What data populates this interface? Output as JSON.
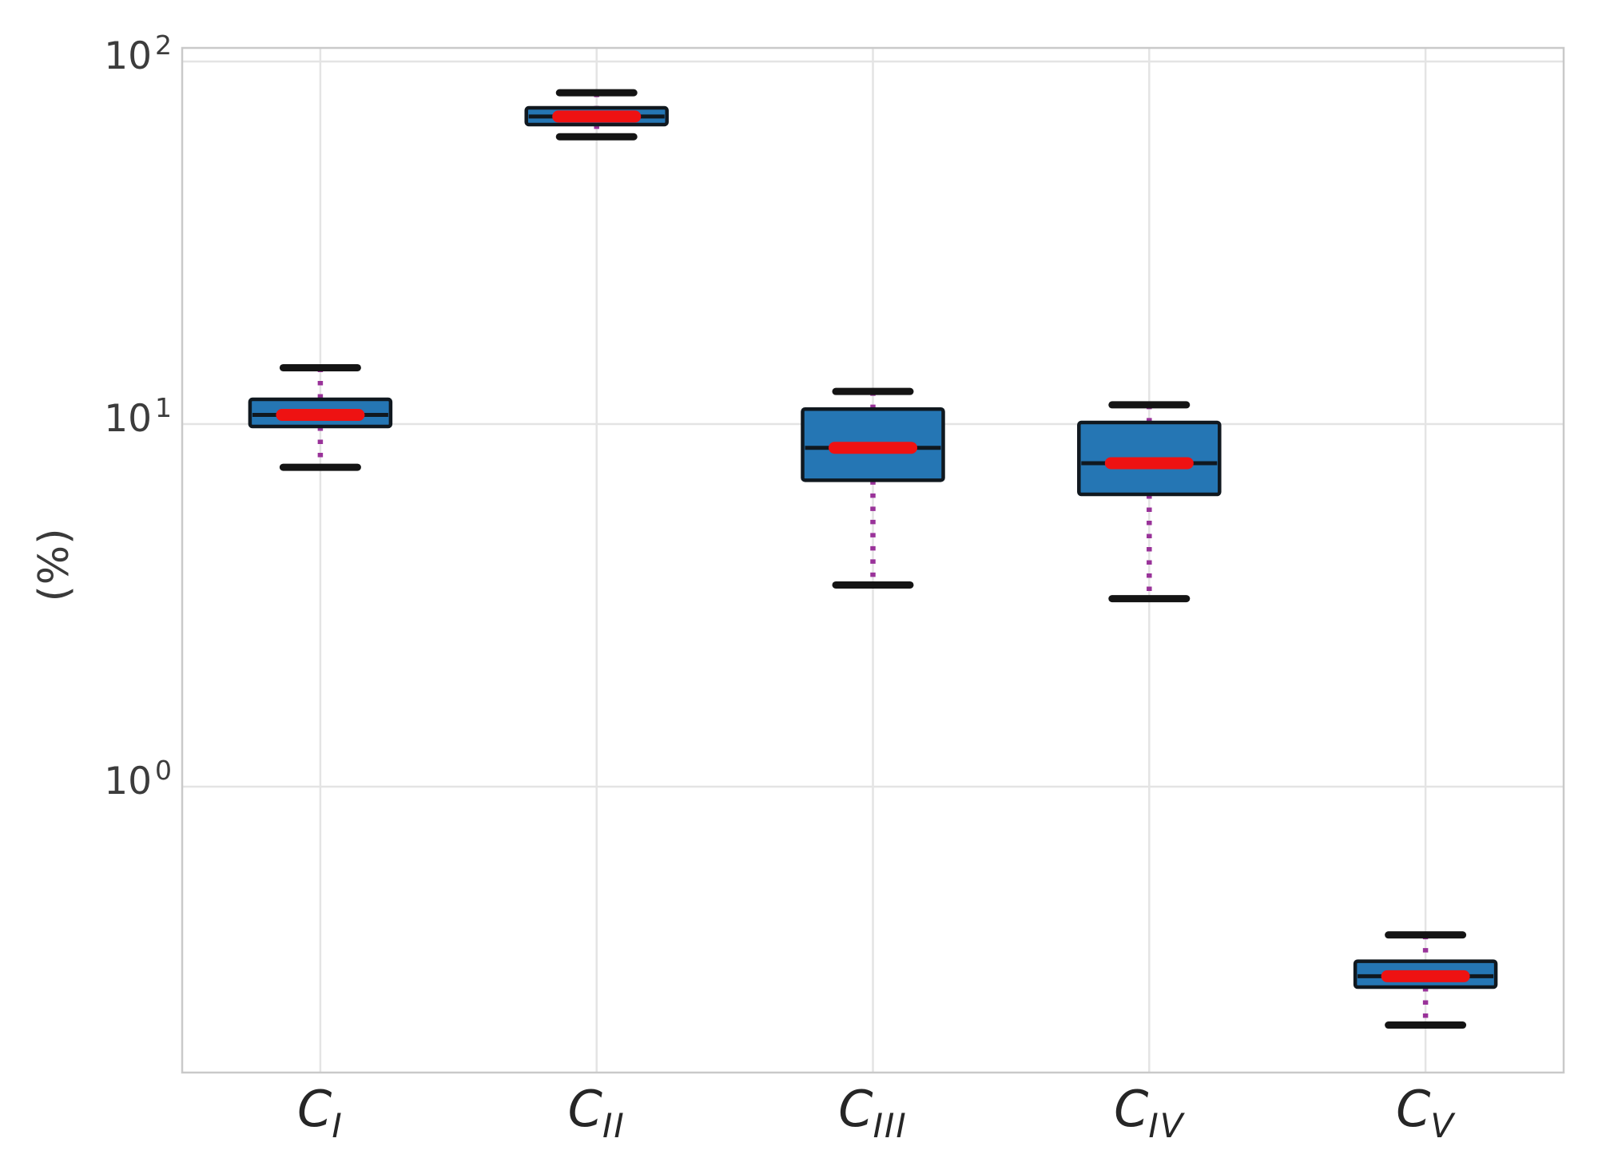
{
  "chart_data": {
    "type": "box",
    "title": "",
    "xlabel": "",
    "ylabel": "(%)",
    "y_scale": "log",
    "y_range": [
      0.16,
      110
    ],
    "grid": true,
    "legend": "none",
    "y_ticks": [
      {
        "base": "10",
        "exponent": "2",
        "value": 100
      },
      {
        "base": "10",
        "exponent": "1",
        "value": 10
      },
      {
        "base": "10",
        "exponent": "0",
        "value": 1
      }
    ],
    "categories": [
      {
        "label_base": "C",
        "label_subscript": "I"
      },
      {
        "label_base": "C",
        "label_subscript": "II"
      },
      {
        "label_base": "C",
        "label_subscript": "III"
      },
      {
        "label_base": "C",
        "label_subscript": "IV"
      },
      {
        "label_base": "C",
        "label_subscript": "V"
      }
    ],
    "boxes": [
      {
        "category": "C_I",
        "whisker_low": 7.6,
        "q1": 9.85,
        "median": 10.6,
        "q3": 11.7,
        "whisker_high": 14.3
      },
      {
        "category": "C_II",
        "whisker_low": 62,
        "q1": 67,
        "median": 70.5,
        "q3": 74.5,
        "whisker_high": 82
      },
      {
        "category": "C_III",
        "whisker_low": 3.6,
        "q1": 7.0,
        "median": 8.6,
        "q3": 11.0,
        "whisker_high": 12.3
      },
      {
        "category": "C_IV",
        "whisker_low": 3.3,
        "q1": 6.4,
        "median": 7.8,
        "q3": 10.1,
        "whisker_high": 11.3
      },
      {
        "category": "C_V",
        "whisker_low": 0.22,
        "q1": 0.28,
        "median": 0.3,
        "q3": 0.33,
        "whisker_high": 0.39
      }
    ],
    "colors": {
      "box_fill": "#2576b4",
      "box_edge": "#10181f",
      "median_line": "#10181f",
      "median_highlight": "#ee1212",
      "whisker": "#993299",
      "cap": "#141414",
      "grid": "#e4e4e4",
      "axis_border": "#c9c9c9",
      "text": "#3c3c3c"
    }
  }
}
